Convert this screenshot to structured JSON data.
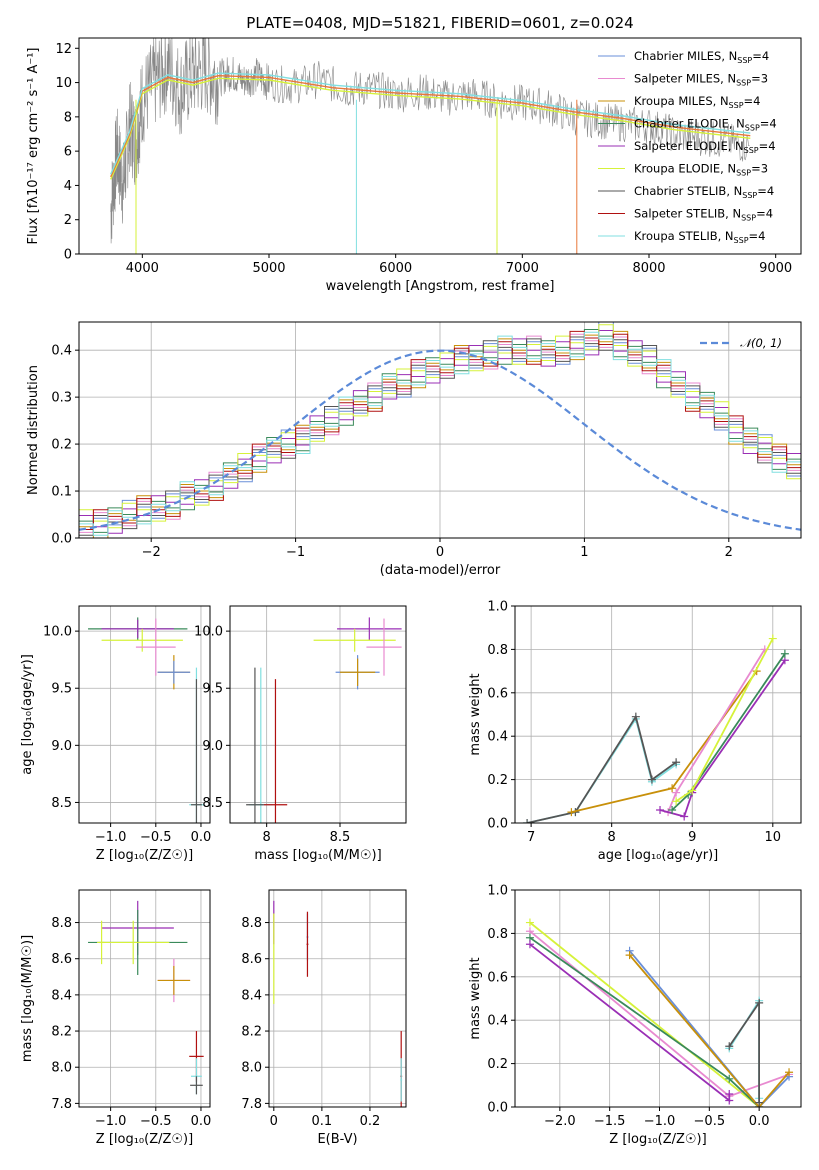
{
  "figure": {
    "title": "PLATE=0408, MJD=51821, FIBERID=0601, z=0.024"
  },
  "colors": {
    "Chabrier MILES": "#6a8fd8",
    "Salpeter MILES": "#e88ad0",
    "Kroupa MILES": "#c8900a",
    "Chabrier ELODIE": "#3a8a5a",
    "Salpeter ELODIE": "#9a2fb5",
    "Kroupa ELODIE": "#d6f23a",
    "Chabrier STELIB": "#555555",
    "Salpeter STELIB": "#b01010",
    "Kroupa STELIB": "#80dfe0",
    "data_gray": "#888888",
    "spectrum_orange": "#e8783a",
    "normal_dashed": "#5b8ad8"
  },
  "chart_data": [
    {
      "id": "spectrum",
      "type": "line",
      "title": "PLATE=0408, MJD=51821, FIBERID=0601, z=0.024",
      "xlabel": "wavelength [Angstrom, rest frame]",
      "ylabel": "Flux [fλ10⁻¹⁷ erg cm⁻² s⁻¹ A⁻¹]",
      "xlim": [
        3500,
        9200
      ],
      "ylim": [
        0,
        12.6
      ],
      "xticks": [
        4000,
        5000,
        6000,
        7000,
        8000,
        9000
      ],
      "yticks": [
        0,
        2,
        4,
        6,
        8,
        10,
        12
      ],
      "grid": false,
      "legend_position": "top-right",
      "legend": [
        {
          "name": "Chabrier MILES",
          "nssp": "4"
        },
        {
          "name": "Salpeter MILES",
          "nssp": "3"
        },
        {
          "name": "Kroupa MILES",
          "nssp": "4"
        },
        {
          "name": "Chabrier ELODIE",
          "nssp": "4"
        },
        {
          "name": "Salpeter ELODIE",
          "nssp": "4"
        },
        {
          "name": "Kroupa ELODIE",
          "nssp": "3"
        },
        {
          "name": "Chabrier STELIB",
          "nssp": "4"
        },
        {
          "name": "Salpeter STELIB",
          "nssp": "4"
        },
        {
          "name": "Kroupa STELIB",
          "nssp": "4"
        }
      ],
      "model_envelope": {
        "x": [
          3750,
          3900,
          4000,
          4200,
          4400,
          4600,
          5000,
          5500,
          6000,
          6500,
          7000,
          7400,
          7800,
          8200,
          8800
        ],
        "y": [
          4.5,
          7.0,
          9.5,
          10.3,
          10.0,
          10.4,
          10.3,
          9.7,
          9.4,
          9.2,
          8.8,
          8.3,
          7.9,
          7.4,
          6.9
        ]
      },
      "data_spectrum": {
        "x": [
          3750,
          3800,
          3850,
          3900,
          3950,
          4000,
          4100,
          4200,
          4300,
          4400,
          4500,
          4600,
          4700,
          4800,
          4900,
          5000,
          5200,
          5400,
          5600,
          5800,
          6000,
          6200,
          6400,
          6600,
          6800,
          7000,
          7200,
          7400,
          7600,
          7800,
          8000,
          8200,
          8400,
          8600,
          8800
        ],
        "y": [
          2.5,
          6.0,
          4.0,
          7.5,
          6.5,
          9.0,
          10.0,
          11.0,
          9.5,
          10.5,
          10.8,
          10.2,
          10.6,
          10.1,
          10.4,
          10.0,
          9.8,
          10.2,
          9.6,
          9.7,
          9.3,
          9.5,
          9.1,
          9.3,
          8.9,
          8.8,
          8.6,
          8.0,
          7.8,
          7.6,
          7.5,
          7.0,
          6.8,
          6.6,
          6.3
        ]
      }
    },
    {
      "id": "residuals",
      "type": "step",
      "xlabel": "(data-model)/error",
      "ylabel": "Normed distribution",
      "xlim": [
        -2.5,
        2.5
      ],
      "ylim": [
        0,
        0.46
      ],
      "xticks": [
        -2,
        -1,
        0,
        1,
        2
      ],
      "yticks": [
        0.0,
        0.1,
        0.2,
        0.3,
        0.4
      ],
      "grid": true,
      "legend_position": "top-right",
      "legend": [
        {
          "name": "𝒩(0, 1)"
        }
      ],
      "bin_width": 0.1,
      "series_hist": [
        0.03,
        0.03,
        0.04,
        0.05,
        0.06,
        0.06,
        0.07,
        0.09,
        0.1,
        0.11,
        0.13,
        0.15,
        0.17,
        0.19,
        0.2,
        0.21,
        0.23,
        0.25,
        0.27,
        0.29,
        0.3,
        0.32,
        0.33,
        0.35,
        0.36,
        0.37,
        0.38,
        0.38,
        0.39,
        0.4,
        0.4,
        0.4,
        0.39,
        0.4,
        0.41,
        0.42,
        0.43,
        0.41,
        0.39,
        0.38,
        0.35,
        0.33,
        0.3,
        0.28,
        0.26,
        0.23,
        0.21,
        0.19,
        0.17,
        0.15,
        0.13,
        0.12,
        0.1,
        0.09,
        0.08,
        0.07,
        0.06,
        0.05,
        0.04,
        0.03
      ]
    },
    {
      "id": "age-vs-Z",
      "type": "errorbar",
      "xlabel": "Z [log₁₀(Z/Z☉)]",
      "ylabel": "age  [log₁₀(age/yr)]",
      "xlim": [
        -1.35,
        0.1
      ],
      "ylim": [
        8.32,
        10.22
      ],
      "xticks": [
        -1.0,
        -0.5,
        0.0
      ],
      "xtick_labels": [
        "−1.0",
        "−0.5",
        "0.0"
      ],
      "yticks": [
        8.5,
        9.0,
        9.5,
        10.0
      ],
      "grid": true,
      "points": [
        {
          "x": -0.7,
          "y": 10.02,
          "xerr": 0.55,
          "yerr": 0.1,
          "series": "Chabrier ELODIE"
        },
        {
          "x": -0.7,
          "y": 10.02,
          "xerr": 0.4,
          "yerr": 0.08,
          "series": "Salpeter ELODIE"
        },
        {
          "x": -0.65,
          "y": 9.92,
          "xerr": 0.45,
          "yerr": 0.1,
          "series": "Kroupa ELODIE"
        },
        {
          "x": -0.5,
          "y": 9.86,
          "xerr": 0.22,
          "yerr": 0.25,
          "series": "Salpeter MILES"
        },
        {
          "x": -0.3,
          "y": 9.64,
          "xerr": 0.18,
          "yerr": 0.15,
          "series": "Kroupa MILES"
        },
        {
          "x": -0.3,
          "y": 9.64,
          "xerr": 0.18,
          "yerr": 0.1,
          "series": "Chabrier MILES"
        },
        {
          "x": -0.05,
          "y": 8.48,
          "xerr": 0.08,
          "yerr": 1.2,
          "series": "Kroupa STELIB"
        },
        {
          "x": -0.05,
          "y": 8.48,
          "xerr": 0.06,
          "yerr": 1.1,
          "series": "Chabrier STELIB"
        }
      ]
    },
    {
      "id": "age-vs-mass",
      "type": "errorbar",
      "xlabel": "mass [log₁₀(M/M☉)]",
      "xlim": [
        7.75,
        8.95
      ],
      "ylim": [
        8.32,
        10.22
      ],
      "xticks": [
        8.0,
        8.5
      ],
      "yticks": [
        8.5,
        9.0,
        9.5,
        10.0
      ],
      "grid": true,
      "points": [
        {
          "x": 8.7,
          "y": 10.02,
          "xerr": 0.22,
          "yerr": 0.1,
          "series": "Salpeter ELODIE"
        },
        {
          "x": 8.6,
          "y": 9.92,
          "xerr": 0.28,
          "yerr": 0.1,
          "series": "Kroupa ELODIE"
        },
        {
          "x": 8.8,
          "y": 9.86,
          "xerr": 0.12,
          "yerr": 0.25,
          "series": "Salpeter MILES"
        },
        {
          "x": 8.62,
          "y": 9.64,
          "xerr": 0.15,
          "yerr": 0.15,
          "series": "Chabrier MILES"
        },
        {
          "x": 8.62,
          "y": 9.64,
          "xerr": 0.12,
          "yerr": 0.12,
          "series": "Kroupa MILES"
        },
        {
          "x": 7.96,
          "y": 8.48,
          "xerr": 0.08,
          "yerr": 1.2,
          "series": "Kroupa STELIB"
        },
        {
          "x": 8.06,
          "y": 8.48,
          "xerr": 0.08,
          "yerr": 1.1,
          "series": "Salpeter STELIB"
        },
        {
          "x": 7.92,
          "y": 8.48,
          "xerr": 0.06,
          "yerr": 1.2,
          "series": "Chabrier STELIB"
        }
      ]
    },
    {
      "id": "weight-vs-age",
      "type": "line",
      "xlabel": "age  [log₁₀(age/yr)]",
      "ylabel": "mass weight",
      "xlim": [
        6.8,
        10.35
      ],
      "ylim": [
        0,
        1.0
      ],
      "xticks": [
        7,
        8,
        9,
        10
      ],
      "yticks": [
        0.0,
        0.2,
        0.4,
        0.6,
        0.8,
        1.0
      ],
      "grid": true,
      "series": [
        {
          "name": "Kroupa STELIB",
          "x": [
            6.95,
            7.55,
            8.3,
            8.5,
            8.8
          ],
          "y": [
            0.0,
            0.05,
            0.48,
            0.19,
            0.27
          ]
        },
        {
          "name": "Chabrier STELIB",
          "x": [
            6.95,
            7.55,
            8.3,
            8.5,
            8.8
          ],
          "y": [
            0.0,
            0.05,
            0.49,
            0.2,
            0.28
          ]
        },
        {
          "name": "Kroupa MILES",
          "x": [
            7.5,
            8.75,
            9.8
          ],
          "y": [
            0.05,
            0.16,
            0.7
          ]
        },
        {
          "name": "Salpeter MILES",
          "x": [
            8.7,
            8.8,
            9.9
          ],
          "y": [
            0.05,
            0.14,
            0.8
          ]
        },
        {
          "name": "Salpeter ELODIE",
          "x": [
            8.6,
            8.9,
            9.0,
            10.15
          ],
          "y": [
            0.06,
            0.03,
            0.14,
            0.75
          ]
        },
        {
          "name": "Chabrier ELODIE",
          "x": [
            8.75,
            8.95,
            10.15
          ],
          "y": [
            0.06,
            0.13,
            0.78
          ]
        },
        {
          "name": "Kroupa ELODIE",
          "x": [
            8.8,
            9.0,
            10.0
          ],
          "y": [
            0.1,
            0.15,
            0.85
          ]
        }
      ]
    },
    {
      "id": "mass-vs-Z",
      "type": "errorbar",
      "xlabel": "Z [log₁₀(Z/Z☉)]",
      "ylabel": "mass [log₁₀(M/M☉)]",
      "xlim": [
        -1.35,
        0.1
      ],
      "ylim": [
        7.78,
        8.98
      ],
      "xticks": [
        -1.0,
        -0.5,
        0.0
      ],
      "xtick_labels": [
        "−1.0",
        "−0.5",
        "0.0"
      ],
      "yticks": [
        7.8,
        8.0,
        8.2,
        8.4,
        8.6,
        8.8
      ],
      "grid": true,
      "points": [
        {
          "x": -0.7,
          "y": 8.77,
          "xerr": 0.4,
          "yerr": 0.15,
          "series": "Salpeter ELODIE"
        },
        {
          "x": -0.7,
          "y": 8.69,
          "xerr": 0.55,
          "yerr": 0.18,
          "series": "Chabrier ELODIE"
        },
        {
          "x": -0.75,
          "y": 8.69,
          "xerr": 0.4,
          "yerr": 0.12,
          "series": "Kroupa ELODIE"
        },
        {
          "x": -1.1,
          "y": 8.69,
          "xerr": 0.03,
          "yerr": 0.12,
          "series": "Kroupa ELODIE"
        },
        {
          "x": -0.3,
          "y": 8.48,
          "xerr": 0.18,
          "yerr": 0.12,
          "series": "Salpeter MILES"
        },
        {
          "x": -0.3,
          "y": 8.48,
          "xerr": 0.18,
          "yerr": 0.08,
          "series": "Kroupa MILES"
        },
        {
          "x": -0.05,
          "y": 8.06,
          "xerr": 0.08,
          "yerr": 0.14,
          "series": "Salpeter STELIB"
        },
        {
          "x": -0.05,
          "y": 7.95,
          "xerr": 0.06,
          "yerr": 0.1,
          "series": "Kroupa STELIB"
        },
        {
          "x": -0.05,
          "y": 7.9,
          "xerr": 0.07,
          "yerr": 0.05,
          "series": "Chabrier STELIB"
        }
      ]
    },
    {
      "id": "mass-vs-EBV",
      "type": "errorbar",
      "xlabel": "E(B-V)",
      "xlim": [
        -0.01,
        0.275
      ],
      "ylim": [
        7.78,
        8.98
      ],
      "xticks": [
        0.0,
        0.1,
        0.2
      ],
      "yticks": [
        7.8,
        8.0,
        8.2,
        8.4,
        8.6,
        8.8
      ],
      "grid": true,
      "points": [
        {
          "x": 0.0,
          "y": 8.8,
          "xerr": 0.0,
          "yerr": 0.12,
          "series": "Salpeter ELODIE"
        },
        {
          "x": 0.0,
          "y": 8.6,
          "xerr": 0.0,
          "yerr": 0.25,
          "series": "Kroupa ELODIE"
        },
        {
          "x": 0.07,
          "y": 8.72,
          "xerr": 0.002,
          "yerr": 0.13,
          "series": "Chabrier MILES"
        },
        {
          "x": 0.07,
          "y": 8.68,
          "xerr": 0.002,
          "yerr": 0.18,
          "series": "Salpeter STELIB"
        },
        {
          "x": 0.265,
          "y": 7.95,
          "xerr": 0.002,
          "yerr": 0.25,
          "series": "Salpeter STELIB"
        },
        {
          "x": 0.265,
          "y": 7.93,
          "xerr": 0.002,
          "yerr": 0.12,
          "series": "Kroupa STELIB"
        }
      ]
    },
    {
      "id": "weight-vs-Z",
      "type": "line",
      "xlabel": "Z [log₁₀(Z/Z☉)]",
      "ylabel": "mass weight",
      "xlim": [
        -2.45,
        0.42
      ],
      "ylim": [
        0,
        1.0
      ],
      "xticks": [
        -2.0,
        -1.5,
        -1.0,
        -0.5,
        0.0
      ],
      "xtick_labels": [
        "−2.0",
        "−1.5",
        "−1.0",
        "−0.5",
        "0.0"
      ],
      "yticks": [
        0.0,
        0.2,
        0.4,
        0.6,
        0.8,
        1.0
      ],
      "grid": true,
      "series": [
        {
          "name": "Kroupa ELODIE",
          "x": [
            -2.3,
            0.0
          ],
          "y": [
            0.85,
            0.0
          ]
        },
        {
          "name": "Salpeter MILES",
          "x": [
            -2.3,
            -0.3,
            0.3
          ],
          "y": [
            0.81,
            0.05,
            0.15
          ]
        },
        {
          "name": "Chabrier ELODIE",
          "x": [
            -2.3,
            -0.3,
            0.0
          ],
          "y": [
            0.78,
            0.13,
            0.0
          ]
        },
        {
          "name": "Salpeter ELODIE",
          "x": [
            -2.3,
            -0.3,
            -0.3
          ],
          "y": [
            0.75,
            0.03,
            0.06
          ]
        },
        {
          "name": "Chabrier MILES",
          "x": [
            -1.3,
            0.0,
            0.3
          ],
          "y": [
            0.72,
            0.0,
            0.14
          ]
        },
        {
          "name": "Kroupa MILES",
          "x": [
            -1.3,
            0.0,
            0.3
          ],
          "y": [
            0.7,
            0.0,
            0.16
          ]
        },
        {
          "name": "Kroupa STELIB",
          "x": [
            -0.3,
            0.0,
            0.0
          ],
          "y": [
            0.27,
            0.49,
            0.04
          ]
        },
        {
          "name": "Chabrier STELIB",
          "x": [
            -0.3,
            0.0,
            0.0
          ],
          "y": [
            0.28,
            0.48,
            0.02
          ]
        }
      ]
    }
  ]
}
